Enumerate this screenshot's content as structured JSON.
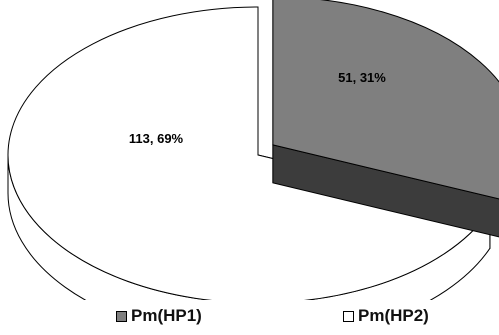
{
  "chart_data": {
    "type": "pie",
    "style": "3d-exploded",
    "slices": [
      {
        "name": "Pm(HP1)",
        "value": 51,
        "percent": 31,
        "label": "51, 31%",
        "color": "#7f7f7f",
        "side_color": "#3c3c3c",
        "exploded": true
      },
      {
        "name": "Pm(HP2)",
        "value": 113,
        "percent": 69,
        "label": "113, 69%",
        "color": "#ffffff",
        "side_color": "#ffffff",
        "exploded": false
      }
    ],
    "legend": {
      "position": "bottom"
    }
  }
}
